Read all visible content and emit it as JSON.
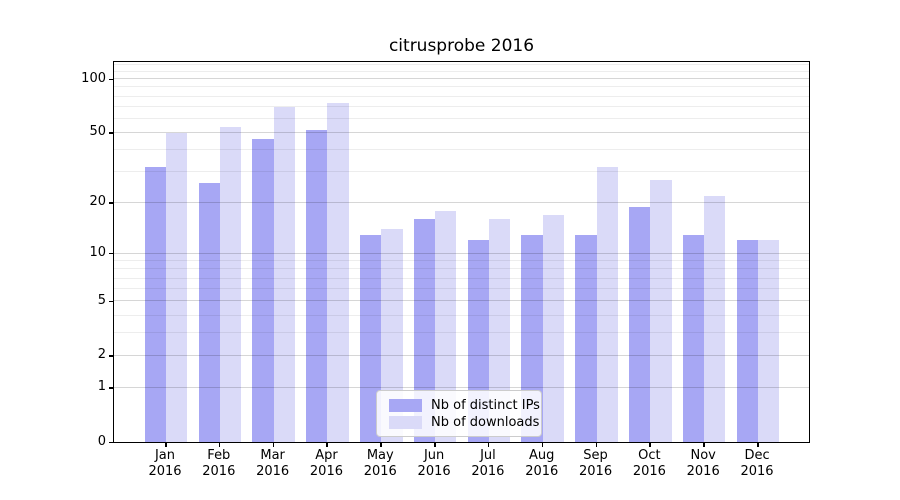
{
  "chart_data": {
    "type": "bar",
    "title": "citrusprobe 2016",
    "categories": [
      "Jan",
      "Feb",
      "Mar",
      "Apr",
      "May",
      "Jun",
      "Jul",
      "Aug",
      "Sep",
      "Oct",
      "Nov",
      "Dec"
    ],
    "category_year": "2016",
    "series": [
      {
        "name": "Nb of distinct IPs",
        "color": "#a7a7f4",
        "values": [
          32,
          26,
          46,
          52,
          13,
          16,
          12,
          13,
          13,
          19,
          13,
          12
        ]
      },
      {
        "name": "Nb of downloads",
        "color": "#dadaf8",
        "values": [
          50,
          54,
          70,
          74,
          14,
          18,
          16,
          17,
          32,
          27,
          22,
          12
        ]
      }
    ],
    "xlabel": "",
    "ylabel": "",
    "y_scale": "log1p",
    "ylim": [
      0,
      123
    ],
    "yticks": [
      0,
      1,
      2,
      5,
      10,
      20,
      50,
      100
    ],
    "y_minor_gridlines": [
      3,
      4,
      6,
      7,
      8,
      9,
      30,
      40,
      60,
      70,
      80,
      90,
      110,
      120
    ],
    "grid": "major and minor horizontal gridlines, drawn above bars",
    "legend_position": "bottom-center"
  },
  "colors": {
    "background": "#ffffff",
    "axis_frame": "#000000",
    "bar_dark": "#a7a7f4",
    "bar_light": "#dadaf8",
    "grid_major": "rgba(0,0,0,0.16)",
    "grid_minor": "rgba(0,0,0,0.07)",
    "legend_border": "#cccccc"
  }
}
